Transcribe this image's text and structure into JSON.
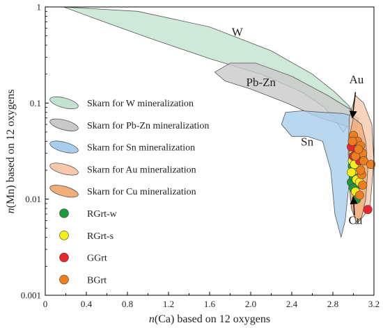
{
  "chart_data": {
    "type": "scatter",
    "xlabel_italic": "n",
    "xlabel_rest": "(Ca) based on 12 oxygens",
    "ylabel_italic": "n",
    "ylabel_rest": "(Mn) based on 12 oxygens",
    "xlim": [
      0,
      3.2
    ],
    "ylim": [
      0.001,
      1
    ],
    "y_scale": "log",
    "x_ticks": [
      "0",
      "0.4",
      "0.8",
      "1.2",
      "1.6",
      "2.0",
      "2.4",
      "2.8",
      "3.2"
    ],
    "y_ticks": [
      "1",
      "0.1",
      "0.01",
      "0.001"
    ],
    "regions": [
      {
        "label": "W",
        "name": "Skarn for W mineralization",
        "fill": "#c3e3d0",
        "label_x": 1.87,
        "label_y": 0.5
      },
      {
        "label": "Pb-Zn",
        "name": "Skarn for Pb-Zn mineralization",
        "fill": "#c9c9c9",
        "label_x": 2.1,
        "label_y": 0.15
      },
      {
        "label": "Sn",
        "name": "Skarn for Sn mineralization",
        "fill": "#a9cdec",
        "label_x": 2.55,
        "label_y": 0.036
      },
      {
        "label": "Au",
        "name": "Skarn for Au mineralization",
        "fill": "#f6c9ad",
        "label_x": 3.03,
        "label_y": 0.16
      },
      {
        "label": "Cu",
        "name": "Skarn for Cu mineralization",
        "fill": "#f2ad78",
        "label_x": 3.02,
        "label_y": 0.0055
      }
    ],
    "series": [
      {
        "name": "RGrt-w",
        "color": "#1e9a3a",
        "points": [
          [
            2.98,
            0.015
          ],
          [
            3.0,
            0.017
          ],
          [
            3.02,
            0.012
          ],
          [
            3.03,
            0.01
          ],
          [
            3.01,
            0.02
          ],
          [
            3.05,
            0.018
          ],
          [
            2.99,
            0.022
          ],
          [
            3.04,
            0.014
          ],
          [
            3.06,
            0.02
          ],
          [
            3.03,
            0.025
          ],
          [
            3.0,
            0.013
          ]
        ]
      },
      {
        "name": "RGrt-s",
        "color": "#f6ee1c",
        "points": [
          [
            2.99,
            0.025
          ],
          [
            3.01,
            0.02
          ],
          [
            3.03,
            0.016
          ],
          [
            3.0,
            0.03
          ],
          [
            3.05,
            0.022
          ],
          [
            2.98,
            0.019
          ],
          [
            3.04,
            0.027
          ],
          [
            3.02,
            0.012
          ],
          [
            3.06,
            0.015
          ],
          [
            3.01,
            0.023
          ]
        ]
      },
      {
        "name": "GGrt",
        "color": "#e8262e",
        "points": [
          [
            2.98,
            0.035
          ],
          [
            3.0,
            0.028
          ],
          [
            3.03,
            0.03
          ],
          [
            3.14,
            0.0078
          ],
          [
            3.06,
            0.025
          ],
          [
            3.01,
            0.04
          ]
        ]
      },
      {
        "name": "BGrt",
        "color": "#ee7d1e",
        "points": [
          [
            3.0,
            0.046
          ],
          [
            3.04,
            0.04
          ],
          [
            3.07,
            0.036
          ],
          [
            3.09,
            0.03
          ],
          [
            3.1,
            0.025
          ],
          [
            3.08,
            0.018
          ],
          [
            3.09,
            0.014
          ],
          [
            3.06,
            0.011
          ],
          [
            3.02,
            0.028
          ],
          [
            3.05,
            0.033
          ],
          [
            3.17,
            0.023
          ],
          [
            2.99,
            0.04
          ],
          [
            3.07,
            0.02
          ]
        ]
      }
    ]
  }
}
